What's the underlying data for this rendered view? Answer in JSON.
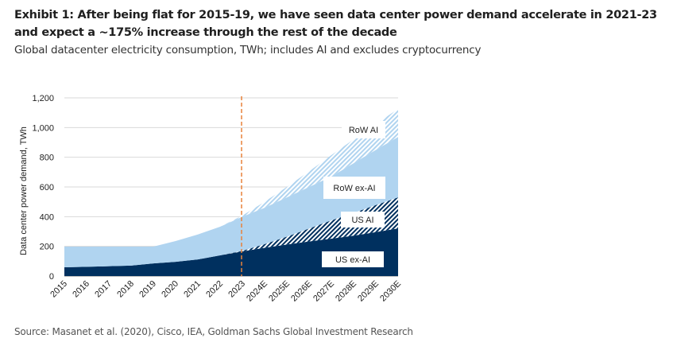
{
  "title": "Exhibit 1: After being flat for 2015-19, we have seen data center power demand accelerate in 2021-23 and expect a ~175% increase through the rest of the decade",
  "subtitle": "Global datacenter electricity consumption, TWh; includes AI and excludes cryptocurrency",
  "source": "Source: Masanet et al. (2020), Cisco, IEA, Goldman Sachs Global Investment Research",
  "chart_data": {
    "type": "area",
    "stacked": true,
    "title": "",
    "xlabel": "",
    "ylabel": "Data center power demand, TWh",
    "ylim": [
      0,
      1200
    ],
    "yticks": [
      0,
      200,
      400,
      600,
      800,
      1000,
      1200
    ],
    "ytick_labels": [
      "0",
      "200",
      "400",
      "600",
      "800",
      "1,000",
      "1,200"
    ],
    "grid": true,
    "categories": [
      "2015",
      "2016",
      "2017",
      "2018",
      "2019",
      "2020",
      "2021",
      "2022",
      "2023",
      "2024E",
      "2025E",
      "2026E",
      "2027E",
      "2028E",
      "2029E",
      "2030E"
    ],
    "divider_at": "2023",
    "series": [
      {
        "name": "US ex-AI",
        "color": "#00305f",
        "pattern": "solid",
        "values": [
          59,
          62,
          66,
          70,
          85,
          96,
          112,
          139,
          166,
          190,
          212,
          233,
          252,
          272,
          296,
          321
        ]
      },
      {
        "name": "US AI",
        "color": "#00305f",
        "pattern": "hatched",
        "values": [
          0,
          0,
          0,
          0,
          0,
          0,
          0,
          0,
          4,
          25,
          53,
          87,
          123,
          153,
          182,
          209
        ]
      },
      {
        "name": "RoW ex-AI",
        "color": "#b0d4f0",
        "pattern": "solid",
        "values": [
          139,
          136,
          132,
          128,
          113,
          140,
          168,
          193,
          230,
          245,
          265,
          280,
          295,
          335,
          372,
          407
        ]
      },
      {
        "name": "RoW AI",
        "color": "#b0d4f0",
        "pattern": "hatched",
        "values": [
          0,
          0,
          0,
          0,
          0,
          0,
          0,
          0,
          7,
          40,
          70,
          105,
          144,
          160,
          175,
          188
        ]
      }
    ],
    "legend_placement": "inline-right",
    "divider_color": "#e8823a"
  }
}
